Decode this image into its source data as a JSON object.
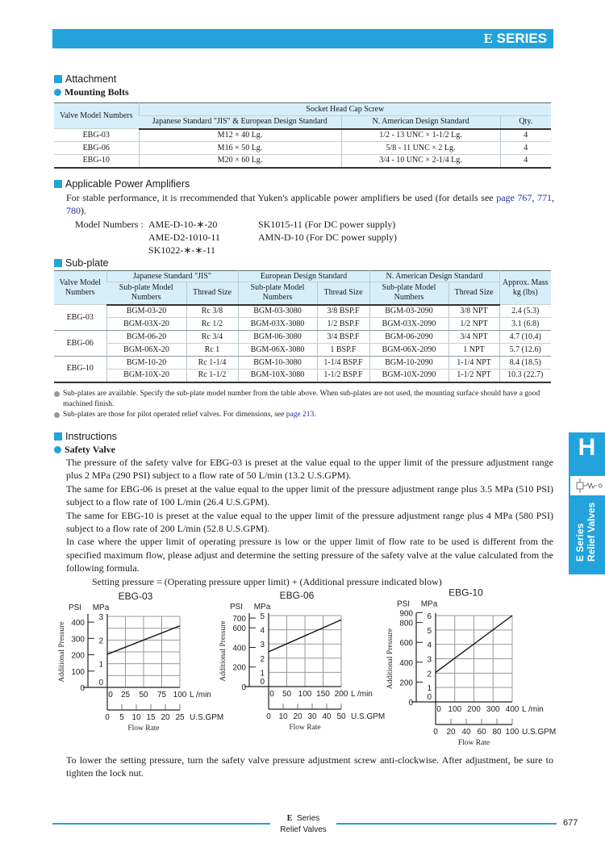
{
  "header": {
    "series_logo": "E",
    "series_label": "SERIES",
    "accent": "#22a3dc"
  },
  "attachment": {
    "title": "Attachment",
    "subtitle": "Mounting Bolts",
    "table": {
      "col_valve": "Valve Model Numbers",
      "group": "Socket Head Cap Screw",
      "col_jis": "Japanese Standard \"JIS\" & European Design Standard",
      "col_na": "N. American Design Standard",
      "col_qty": "Qty.",
      "rows": [
        [
          "EBG-03",
          "M12 × 40 Lg.",
          "1/2 - 13 UNC × 1-1/2 Lg.",
          "4"
        ],
        [
          "EBG-06",
          "M16 × 50 Lg.",
          "5/8 - 11 UNC × 2 Lg.",
          "4"
        ],
        [
          "EBG-10",
          "M20 × 60 Lg.",
          "3/4 - 10 UNC × 2-1/4 Lg.",
          "4"
        ]
      ]
    }
  },
  "amplifiers": {
    "title": "Applicable Power Amplifiers",
    "text": "For stable performance, it is rrecommended that Yuken's applicable power amplifiers be used (for details see ",
    "link1": "page 767",
    "sep1": ", ",
    "link2": "771",
    "sep2": ", ",
    "link3": "780",
    "text_end": ").",
    "model_label": "Model Numbers :",
    "models_left": [
      "AME-D-10-∗-20",
      "AME-D2-1010-11",
      "SK1022-∗-∗-11"
    ],
    "models_right": [
      "SK1015-11 (For DC power supply)",
      "AMN-D-10 (For DC power supply)"
    ]
  },
  "subplate": {
    "title": "Sub-plate",
    "head": {
      "valve": "Valve Model Numbers",
      "jis": "Japanese Standard \"JIS\"",
      "eu": "European Design Standard",
      "na": "N. American Design Standard",
      "mass": "Approx. Mass kg (lbs)",
      "model": "Sub-plate Model Numbers",
      "thread": "Thread Size"
    },
    "groups": [
      {
        "valve": "EBG-03",
        "rows": [
          [
            "BGM-03-20",
            "Rc 3/8",
            "BGM-03-3080",
            "3/8 BSP.F",
            "BGM-03-2090",
            "3/8 NPT",
            "2.4 (5.3)"
          ],
          [
            "BGM-03X-20",
            "Rc 1/2",
            "BGM-03X-3080",
            "1/2 BSP.F",
            "BGM-03X-2090",
            "1/2 NPT",
            "3.1 (6.8)"
          ]
        ]
      },
      {
        "valve": "EBG-06",
        "rows": [
          [
            "BGM-06-20",
            "Rc 3/4",
            "BGM-06-3080",
            "3/4 BSP.F",
            "BGM-06-2090",
            "3/4 NPT",
            "4.7 (10.4)"
          ],
          [
            "BGM-06X-20",
            "Rc 1",
            "BGM-06X-3080",
            "1 BSP.F",
            "BGM-06X-2090",
            "1 NPT",
            "5.7 (12.6)"
          ]
        ]
      },
      {
        "valve": "EBG-10",
        "rows": [
          [
            "BGM-10-20",
            "Rc 1-1/4",
            "BGM-10-3080",
            "1-1/4 BSP.F",
            "BGM-10-2090",
            "1-1/4 NPT",
            "8.4 (18.5)"
          ],
          [
            "BGM-10X-20",
            "Rc 1-1/2",
            "BGM-10X-3080",
            "1-1/2 BSP.F",
            "BGM-10X-2090",
            "1-1/2 NPT",
            "10.3 (22.7)"
          ]
        ]
      }
    ],
    "note1": "Sub-plates are available.  Specify the sub-plate model number from the table above.  When sub-plates are not used, the mounting surface should have a good machined finish.",
    "note2": "Sub-plates are those for pilot operated relief valves.  For dimensions, see ",
    "note2_link": "page 213",
    "note2_end": "."
  },
  "instructions": {
    "title": "Instructions",
    "subtitle": "Safety Valve",
    "paragraphs": [
      "The pressure of the safety valve for EBG-03 is preset at the value equal to the upper limit of the pressure adjustment range plus 2 MPa (290 PSI) subject to a flow rate of 50 L/min (13.2 U.S.GPM).",
      "The same for EBG-06 is preset at the value equal to the upper limit of the pressure adjustment range plus 3.5 MPa (510 PSI) subject to a flow rate of 100 L/min (26.4 U.S.GPM).",
      "The same for EBG-10 is preset at the value equal to the upper limit of the pressure adjustment range plus 4 MPa (580 PSI) subject to a flow rate of 200 L/min (52.8 U.S.GPM).",
      "In case where the upper limit of operating pressure is low or the upper limit of flow rate to be used is different from the specified maximum flow, please adjust and determine the setting pressure of the safety valve at the value calculated from the following formula."
    ],
    "formula": "Setting pressure = (Operating pressure upper limit) + (Additional pressure indicated blow)",
    "closing": "To lower the setting pressure, turn the safety valve pressure adjustment screw anti-clockwise.  After adjustment, be sure to tighten the lock nut."
  },
  "chart_data": [
    {
      "type": "line",
      "title": "EBG-03",
      "ylabel": "Additional Pressure",
      "xlabel": "Flow Rate",
      "y_unit": "MPa",
      "y2_unit": "PSI",
      "x_unit": "L /min",
      "x2_unit": "U.S.GPM",
      "ylim": [
        0,
        3
      ],
      "y_ticks": [
        0,
        1,
        2,
        3
      ],
      "y2_ticks": [
        0,
        100,
        200,
        300,
        400
      ],
      "grid_step_mpa": 0.5,
      "xlim": [
        0,
        100
      ],
      "x_ticks": [
        0,
        25,
        50,
        75,
        100
      ],
      "x2_ticks": [
        0,
        5,
        10,
        15,
        20,
        25
      ],
      "grid": true,
      "series": [
        {
          "x": [
            0,
            100
          ],
          "y": [
            1.4,
            2.6
          ]
        }
      ]
    },
    {
      "type": "line",
      "title": "EBG-06",
      "ylabel": "Additional Pressure",
      "xlabel": "Flow Rate",
      "y_unit": "MPa",
      "y2_unit": "PSI",
      "x_unit": "L /min",
      "x2_unit": "U.S.GPM",
      "ylim": [
        0,
        5
      ],
      "y_ticks": [
        0,
        1,
        2,
        3,
        4,
        5
      ],
      "y2_ticks": [
        0,
        200,
        400,
        600,
        700
      ],
      "grid_step_mpa": 1,
      "xlim": [
        0,
        200
      ],
      "x_ticks": [
        0,
        50,
        100,
        150,
        200
      ],
      "x2_ticks": [
        0,
        10,
        20,
        30,
        40,
        50
      ],
      "grid": true,
      "series": [
        {
          "x": [
            0,
            200
          ],
          "y": [
            2.45,
            4.7
          ]
        }
      ]
    },
    {
      "type": "line",
      "title": "EBG-10",
      "ylabel": "Additional Pressure",
      "xlabel": "Flow Rate",
      "y_unit": "MPa",
      "y2_unit": "PSI",
      "x_unit": "L /min",
      "x2_unit": "U.S.GPM",
      "ylim": [
        0,
        6
      ],
      "y_ticks": [
        0,
        1,
        2,
        3,
        4,
        5,
        6
      ],
      "y2_ticks": [
        0,
        200,
        400,
        600,
        800,
        900
      ],
      "grid_step_mpa": 1,
      "xlim": [
        0,
        400
      ],
      "x_ticks": [
        0,
        100,
        200,
        300,
        400
      ],
      "x2_ticks": [
        0,
        20,
        40,
        60,
        80,
        100
      ],
      "grid": true,
      "series": [
        {
          "x": [
            0,
            400
          ],
          "y": [
            2.05,
            6
          ]
        }
      ]
    }
  ],
  "side_tab": {
    "letter": "H",
    "line1": "E Series",
    "line2": "Relief Valves",
    "icon": "relief-valve-symbol-icon"
  },
  "footer": {
    "logo": "E",
    "series": "Series",
    "category": "Relief Valves",
    "page": "677"
  }
}
